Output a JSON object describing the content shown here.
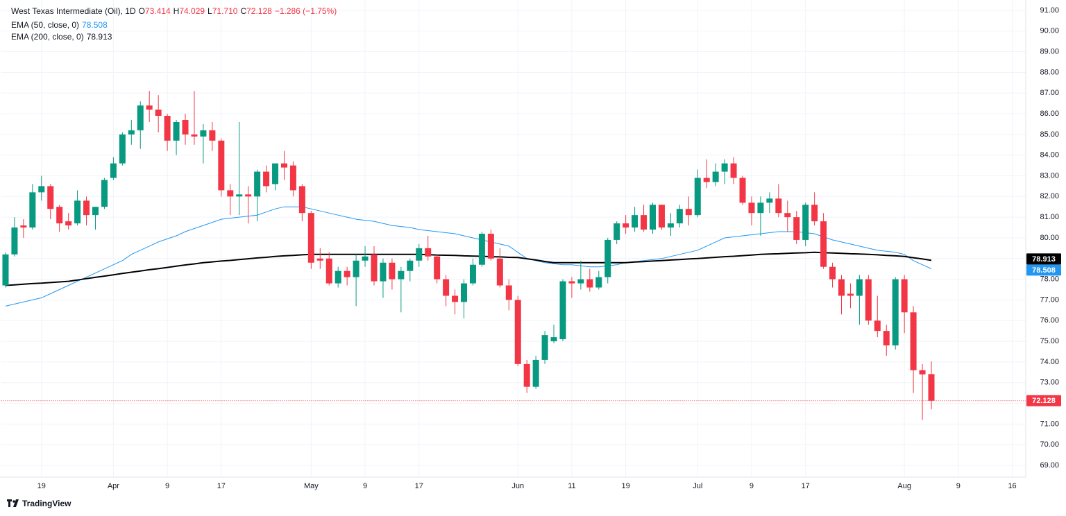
{
  "chart_data": {
    "type": "candlestick",
    "title": "West Texas Intermediate (Oil), 1D",
    "ohlc_keys": [
      "O",
      "H",
      "L",
      "C"
    ],
    "ohlc_labels": [
      "73.414",
      "74.029",
      "71.710",
      "72.128"
    ],
    "change_label": "−1.286 (−1.75%)",
    "up_color": "#089981",
    "down_color": "#f23645",
    "grid": true,
    "ylim": [
      68.43,
      91.5
    ],
    "yticks": [
      {
        "value": 69,
        "label": "69.00"
      },
      {
        "value": 70,
        "label": "70.00"
      },
      {
        "value": 71,
        "label": "71.00"
      },
      {
        "value": 72,
        "label": "72.00"
      },
      {
        "value": 73,
        "label": "73.00"
      },
      {
        "value": 74,
        "label": "74.00"
      },
      {
        "value": 75,
        "label": "75.00"
      },
      {
        "value": 76,
        "label": "76.00"
      },
      {
        "value": 77,
        "label": "77.00"
      },
      {
        "value": 78,
        "label": "78.00"
      },
      {
        "value": 79,
        "label": "79.00"
      },
      {
        "value": 80,
        "label": "80.00"
      },
      {
        "value": 81,
        "label": "81.00"
      },
      {
        "value": 82,
        "label": "82.00"
      },
      {
        "value": 83,
        "label": "83.00"
      },
      {
        "value": 84,
        "label": "84.00"
      },
      {
        "value": 85,
        "label": "85.00"
      },
      {
        "value": 86,
        "label": "86.00"
      },
      {
        "value": 87,
        "label": "87.00"
      },
      {
        "value": 88,
        "label": "88.00"
      },
      {
        "value": 89,
        "label": "89.00"
      },
      {
        "value": 90,
        "label": "90.00"
      },
      {
        "value": 91,
        "label": "91.00"
      }
    ],
    "categories": [
      null,
      null,
      null,
      null,
      "19",
      null,
      null,
      null,
      null,
      null,
      null,
      null,
      "Apr",
      null,
      null,
      null,
      null,
      null,
      "9",
      null,
      null,
      null,
      null,
      null,
      "17",
      null,
      null,
      null,
      null,
      null,
      null,
      null,
      null,
      null,
      "May",
      null,
      null,
      null,
      null,
      null,
      "9",
      null,
      null,
      null,
      null,
      null,
      "17",
      null,
      null,
      null,
      null,
      null,
      null,
      null,
      null,
      null,
      null,
      "Jun",
      null,
      null,
      null,
      null,
      null,
      "11",
      null,
      null,
      null,
      null,
      null,
      "19",
      null,
      null,
      null,
      null,
      null,
      null,
      null,
      "Jul",
      null,
      null,
      null,
      null,
      null,
      "9",
      null,
      null,
      null,
      null,
      null,
      "17",
      null,
      null,
      null,
      null,
      null,
      null,
      null,
      null,
      null,
      null,
      "Aug",
      null,
      null,
      null,
      null,
      null,
      "9",
      null,
      null,
      null,
      null,
      null,
      "16",
      null
    ],
    "open": [
      77.7,
      79.2,
      80.6,
      80.5,
      82.2,
      82.5,
      81.5,
      80.8,
      80.7,
      81.8,
      81.1,
      81.5,
      82.9,
      83.6,
      85.0,
      85.2,
      86.4,
      86.2,
      85.9,
      84.7,
      85.7,
      85.0,
      84.9,
      85.2,
      84.7,
      82.3,
      82.0,
      82.1,
      82.0,
      83.2,
      82.6,
      83.6,
      83.5,
      82.5,
      81.2,
      79.0,
      79.0,
      77.8,
      78.4,
      78.1,
      78.9,
      79.2,
      77.9,
      78.8,
      78.0,
      78.4,
      78.9,
      79.5,
      79.1,
      78.0,
      77.2,
      76.9,
      77.8,
      78.7,
      80.2,
      79.0,
      77.7,
      77.0,
      73.9,
      72.8,
      74.1,
      75.0,
      75.1,
      77.9,
      77.8,
      78.0,
      77.6,
      78.1,
      79.9,
      80.7,
      80.5,
      81.1,
      80.4,
      81.6,
      80.5,
      80.7,
      81.4,
      81.1,
      82.9,
      82.7,
      83.2,
      83.6,
      82.9,
      81.7,
      81.2,
      81.7,
      81.9,
      81.2,
      81.0,
      79.9,
      81.6,
      80.8,
      78.6,
      78.0,
      77.3,
      77.2,
      78.0,
      76.0,
      75.5,
      74.8,
      78.0,
      76.4,
      73.6,
      73.414,
      null,
      null,
      null,
      null,
      null,
      null,
      null,
      null,
      null,
      null
    ],
    "high": [
      79.3,
      81.0,
      80.9,
      82.6,
      83.0,
      82.6,
      81.6,
      81.2,
      82.3,
      82.0,
      81.5,
      82.9,
      83.9,
      85.1,
      85.7,
      86.6,
      87.1,
      86.9,
      86.0,
      85.7,
      86.0,
      87.1,
      85.5,
      85.6,
      84.8,
      82.6,
      85.6,
      82.5,
      83.3,
      83.5,
      83.6,
      84.2,
      83.7,
      82.6,
      81.3,
      79.5,
      79.3,
      78.6,
      78.6,
      79.2,
      79.6,
      79.6,
      79.0,
      79.0,
      78.6,
      79.0,
      79.7,
      80.1,
      79.2,
      78.2,
      77.5,
      78.0,
      79.0,
      80.3,
      80.4,
      79.5,
      78.0,
      77.2,
      74.1,
      74.3,
      75.5,
      75.8,
      78.0,
      78.1,
      78.9,
      78.5,
      78.4,
      80.0,
      80.8,
      81.1,
      81.5,
      81.6,
      81.7,
      81.6,
      81.2,
      81.6,
      82.0,
      83.3,
      83.8,
      83.6,
      83.8,
      83.9,
      83.0,
      82.0,
      82.0,
      82.2,
      82.6,
      81.8,
      81.3,
      81.7,
      82.2,
      81.2,
      78.8,
      78.2,
      77.8,
      78.2,
      78.2,
      77.2,
      75.8,
      78.1,
      78.2,
      76.7,
      73.9,
      74.029,
      null,
      null,
      null,
      null,
      null,
      null,
      null,
      null,
      null,
      null
    ],
    "low": [
      77.6,
      79.1,
      80.0,
      80.4,
      81.8,
      80.9,
      80.3,
      80.4,
      80.6,
      80.6,
      80.4,
      81.4,
      82.8,
      83.5,
      84.5,
      84.3,
      85.6,
      85.1,
      84.2,
      84.0,
      84.5,
      84.5,
      83.6,
      84.2,
      82.0,
      81.1,
      81.1,
      80.7,
      80.8,
      82.2,
      82.3,
      82.8,
      82.0,
      80.8,
      78.5,
      78.5,
      77.7,
      77.6,
      77.7,
      76.7,
      78.6,
      77.7,
      77.1,
      77.5,
      76.4,
      77.9,
      78.6,
      78.9,
      77.8,
      76.7,
      76.3,
      76.1,
      77.7,
      78.6,
      78.9,
      77.6,
      76.5,
      73.8,
      72.5,
      72.7,
      73.9,
      74.9,
      75.0,
      77.1,
      77.5,
      77.4,
      77.5,
      77.8,
      79.7,
      80.2,
      80.3,
      80.3,
      80.2,
      80.4,
      80.1,
      80.5,
      80.6,
      81.0,
      82.4,
      82.5,
      82.6,
      82.6,
      81.6,
      80.6,
      80.1,
      81.2,
      81.0,
      80.3,
      79.7,
      79.6,
      80.6,
      78.5,
      77.6,
      76.3,
      76.6,
      75.8,
      75.8,
      75.2,
      74.3,
      74.6,
      75.4,
      72.5,
      71.2,
      71.71,
      null,
      null,
      null,
      null,
      null,
      null,
      null,
      null,
      null,
      null
    ],
    "close": [
      79.2,
      80.5,
      80.5,
      82.2,
      82.5,
      81.4,
      80.7,
      80.6,
      81.8,
      81.1,
      81.5,
      82.8,
      83.6,
      85.0,
      85.2,
      86.4,
      86.2,
      85.9,
      84.7,
      85.6,
      85.0,
      84.9,
      85.2,
      84.7,
      82.3,
      82.0,
      82.1,
      82.0,
      83.2,
      82.5,
      83.6,
      83.4,
      82.3,
      81.2,
      78.8,
      78.9,
      77.8,
      78.4,
      78.1,
      78.9,
      79.1,
      77.9,
      78.8,
      78.0,
      78.4,
      78.9,
      79.5,
      79.1,
      78.0,
      77.2,
      76.9,
      77.8,
      78.7,
      80.2,
      79.0,
      77.7,
      77.0,
      73.9,
      72.8,
      74.1,
      75.3,
      75.2,
      77.9,
      77.8,
      78.0,
      77.6,
      78.1,
      79.9,
      80.7,
      80.5,
      81.1,
      80.4,
      81.6,
      80.5,
      80.7,
      81.4,
      81.1,
      82.9,
      82.7,
      83.2,
      83.6,
      82.9,
      81.7,
      81.2,
      81.7,
      81.9,
      81.2,
      81.0,
      79.9,
      81.6,
      80.8,
      78.6,
      78.0,
      77.2,
      77.2,
      78.0,
      76.0,
      75.5,
      74.8,
      78.0,
      76.4,
      73.6,
      73.4,
      72.128,
      null,
      null,
      null,
      null,
      null,
      null,
      null,
      null,
      null,
      null
    ],
    "series": [
      {
        "name": "EMA (50, close, 0)",
        "color": "#2196f3",
        "values": [
          76.7,
          76.8,
          76.9,
          77.0,
          77.1,
          77.3,
          77.5,
          77.7,
          77.9,
          78.1,
          78.3,
          78.5,
          78.7,
          78.9,
          79.2,
          79.4,
          79.6,
          79.8,
          79.95,
          80.1,
          80.3,
          80.45,
          80.6,
          80.75,
          80.9,
          80.95,
          81.0,
          81.05,
          81.1,
          81.25,
          81.4,
          81.5,
          81.5,
          81.5,
          81.4,
          81.3,
          81.2,
          81.1,
          81.0,
          80.9,
          80.85,
          80.8,
          80.7,
          80.6,
          80.55,
          80.5,
          80.4,
          80.35,
          80.3,
          80.25,
          80.2,
          80.1,
          80.0,
          79.9,
          79.8,
          79.7,
          79.6,
          79.3,
          79.0,
          78.9,
          78.8,
          78.75,
          78.7,
          78.7,
          78.65,
          78.6,
          78.6,
          78.65,
          78.7,
          78.8,
          78.85,
          78.9,
          78.95,
          79.0,
          79.1,
          79.2,
          79.3,
          79.4,
          79.6,
          79.8,
          80.0,
          80.05,
          80.1,
          80.15,
          80.2,
          80.25,
          80.3,
          80.3,
          80.3,
          80.25,
          80.2,
          80.05,
          79.9,
          79.8,
          79.7,
          79.6,
          79.5,
          79.4,
          79.35,
          79.3,
          79.2,
          78.9,
          78.7,
          78.508,
          null,
          null,
          null,
          null,
          null,
          null,
          null,
          null,
          null,
          null
        ]
      },
      {
        "name": "EMA (200, close, 0)",
        "color": "#000000",
        "values": [
          77.7,
          77.73,
          77.76,
          77.79,
          77.81,
          77.84,
          77.87,
          77.9,
          77.96,
          78.03,
          78.09,
          78.15,
          78.21,
          78.28,
          78.34,
          78.4,
          78.46,
          78.51,
          78.57,
          78.63,
          78.69,
          78.74,
          78.8,
          78.84,
          78.88,
          78.91,
          78.95,
          78.99,
          79.03,
          79.06,
          79.1,
          79.13,
          79.15,
          79.18,
          79.2,
          79.2,
          79.2,
          79.2,
          79.2,
          79.2,
          79.2,
          79.2,
          79.2,
          79.2,
          79.2,
          79.2,
          79.2,
          79.19,
          79.17,
          79.16,
          79.15,
          79.13,
          79.12,
          79.11,
          79.09,
          79.08,
          79.06,
          79.05,
          78.99,
          78.93,
          78.86,
          78.8,
          78.8,
          78.8,
          78.8,
          78.8,
          78.8,
          78.8,
          78.8,
          78.8,
          78.83,
          78.85,
          78.88,
          78.9,
          78.93,
          78.95,
          78.98,
          79.0,
          79.03,
          79.06,
          79.09,
          79.11,
          79.14,
          79.17,
          79.2,
          79.22,
          79.23,
          79.25,
          79.27,
          79.28,
          79.3,
          79.28,
          79.27,
          79.25,
          79.23,
          79.22,
          79.2,
          79.18,
          79.15,
          79.13,
          79.1,
          79.04,
          78.98,
          78.913,
          null,
          null,
          null,
          null,
          null,
          null,
          null,
          null,
          null,
          null
        ]
      }
    ]
  },
  "footer": {
    "brand": "TradingView"
  }
}
